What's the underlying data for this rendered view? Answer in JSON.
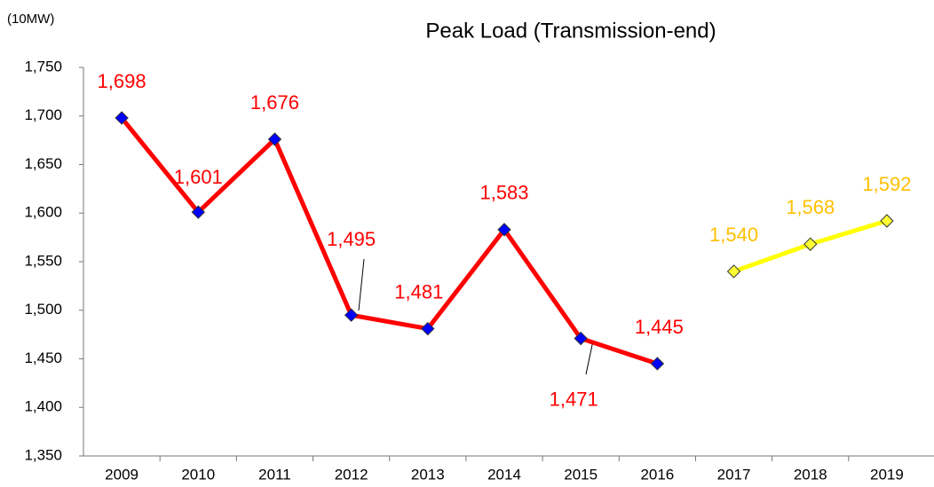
{
  "chart_data": {
    "type": "line",
    "title": "Peak Load (Transmission-end)",
    "y_axis_label": "(10MW)",
    "categories": [
      "2009",
      "2010",
      "2011",
      "2012",
      "2013",
      "2014",
      "2015",
      "2016",
      "2017",
      "2018",
      "2019"
    ],
    "series": [
      {
        "name": "Actual",
        "color": "#ff0000",
        "marker_color": "#0000ff",
        "label_color": "#ff0000",
        "values": [
          1698,
          1601,
          1676,
          1495,
          1481,
          1583,
          1471,
          1445,
          null,
          null,
          null
        ],
        "value_labels": [
          "1,698",
          "1,601",
          "1,676",
          "1,495",
          "1,481",
          "1,583",
          "1,471",
          "1,445",
          null,
          null,
          null
        ]
      },
      {
        "name": "Forecast",
        "color": "#ffff00",
        "marker_color": "#ffff33",
        "label_color": "#ffc000",
        "values": [
          null,
          null,
          null,
          null,
          null,
          null,
          null,
          null,
          1540,
          1568,
          1592
        ],
        "value_labels": [
          null,
          null,
          null,
          null,
          null,
          null,
          null,
          null,
          "1,540",
          "1,568",
          "1,592"
        ]
      }
    ],
    "ylim": [
      1350,
      1750
    ],
    "yticks": [
      {
        "value": 1350,
        "label": "1,350"
      },
      {
        "value": 1400,
        "label": "1,400"
      },
      {
        "value": 1450,
        "label": "1,450"
      },
      {
        "value": 1500,
        "label": "1,500"
      },
      {
        "value": 1550,
        "label": "1,550"
      },
      {
        "value": 1600,
        "label": "1,600"
      },
      {
        "value": 1650,
        "label": "1,650"
      },
      {
        "value": 1700,
        "label": "1,700"
      },
      {
        "value": 1750,
        "label": "1,750"
      }
    ],
    "grid": false
  }
}
